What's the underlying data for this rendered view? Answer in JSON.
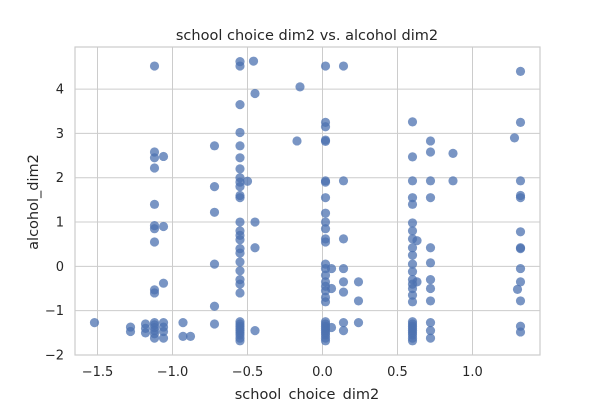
{
  "chart_data": {
    "type": "scatter",
    "title": "school choice dim2 vs. alcohol dim2",
    "xlabel": "school_choice_dim2",
    "ylabel": "alcohol_dim2",
    "xlim": [
      -1.65,
      1.45
    ],
    "ylim": [
      -2.0,
      4.95
    ],
    "xticks": [
      -1.5,
      -1.0,
      -0.5,
      0.0,
      0.5,
      1.0
    ],
    "xtick_labels": [
      "−1.5",
      "−1.0",
      "−0.5",
      "0.0",
      "0.5",
      "1.0"
    ],
    "yticks": [
      -2,
      -1,
      0,
      1,
      2,
      3,
      4
    ],
    "ytick_labels": [
      "−2",
      "−1",
      "0",
      "1",
      "2",
      "3",
      "4"
    ],
    "grid": true,
    "marker_color": "#4c72b0",
    "series": [
      {
        "points": [
          [
            -1.52,
            -1.27
          ],
          [
            -1.28,
            -1.37
          ],
          [
            -1.28,
            -1.47
          ],
          [
            -1.18,
            -1.3
          ],
          [
            -1.18,
            -1.4
          ],
          [
            -1.18,
            -1.5
          ],
          [
            -1.12,
            4.52
          ],
          [
            -1.12,
            2.58
          ],
          [
            -1.12,
            2.45
          ],
          [
            -1.12,
            2.22
          ],
          [
            -1.12,
            1.4
          ],
          [
            -1.12,
            0.92
          ],
          [
            -1.12,
            0.85
          ],
          [
            -1.12,
            0.55
          ],
          [
            -1.12,
            -0.53
          ],
          [
            -1.12,
            -0.6
          ],
          [
            -1.12,
            -1.27
          ],
          [
            -1.12,
            -1.32
          ],
          [
            -1.12,
            -1.38
          ],
          [
            -1.12,
            -1.45
          ],
          [
            -1.12,
            -1.52
          ],
          [
            -1.12,
            -1.62
          ],
          [
            -1.06,
            2.48
          ],
          [
            -1.06,
            0.9
          ],
          [
            -1.06,
            -0.38
          ],
          [
            -1.06,
            -1.27
          ],
          [
            -1.06,
            -1.37
          ],
          [
            -1.06,
            -1.47
          ],
          [
            -1.06,
            -1.62
          ],
          [
            -0.93,
            -1.27
          ],
          [
            -0.93,
            -1.58
          ],
          [
            -0.88,
            -1.58
          ],
          [
            -0.72,
            2.72
          ],
          [
            -0.72,
            1.8
          ],
          [
            -0.72,
            1.22
          ],
          [
            -0.72,
            0.05
          ],
          [
            -0.72,
            -0.9
          ],
          [
            -0.72,
            -1.3
          ],
          [
            -0.55,
            4.62
          ],
          [
            -0.55,
            4.52
          ],
          [
            -0.55,
            3.65
          ],
          [
            -0.55,
            3.02
          ],
          [
            -0.55,
            2.72
          ],
          [
            -0.55,
            2.45
          ],
          [
            -0.55,
            2.2
          ],
          [
            -0.55,
            2.0
          ],
          [
            -0.55,
            1.9
          ],
          [
            -0.55,
            1.8
          ],
          [
            -0.55,
            1.6
          ],
          [
            -0.55,
            1.55
          ],
          [
            -0.55,
            1.0
          ],
          [
            -0.55,
            0.8
          ],
          [
            -0.55,
            0.7
          ],
          [
            -0.55,
            0.6
          ],
          [
            -0.55,
            0.4
          ],
          [
            -0.55,
            0.3
          ],
          [
            -0.55,
            0.1
          ],
          [
            -0.55,
            -0.1
          ],
          [
            -0.55,
            -0.3
          ],
          [
            -0.55,
            -0.4
          ],
          [
            -0.55,
            -0.6
          ],
          [
            -0.55,
            -1.25
          ],
          [
            -0.55,
            -1.3
          ],
          [
            -0.55,
            -1.35
          ],
          [
            -0.55,
            -1.4
          ],
          [
            -0.55,
            -1.45
          ],
          [
            -0.55,
            -1.5
          ],
          [
            -0.55,
            -1.55
          ],
          [
            -0.55,
            -1.62
          ],
          [
            -0.55,
            -1.68
          ],
          [
            -0.5,
            1.92
          ],
          [
            -0.46,
            4.63
          ],
          [
            -0.45,
            3.9
          ],
          [
            -0.45,
            1.0
          ],
          [
            -0.45,
            0.42
          ],
          [
            -0.45,
            -1.45
          ],
          [
            -0.15,
            4.05
          ],
          [
            -0.17,
            2.83
          ],
          [
            0.02,
            4.52
          ],
          [
            0.02,
            3.25
          ],
          [
            0.02,
            3.15
          ],
          [
            0.02,
            2.85
          ],
          [
            0.02,
            2.82
          ],
          [
            0.02,
            1.93
          ],
          [
            0.02,
            1.9
          ],
          [
            0.02,
            1.55
          ],
          [
            0.02,
            1.2
          ],
          [
            0.02,
            1.0
          ],
          [
            0.02,
            0.85
          ],
          [
            0.02,
            0.62
          ],
          [
            0.02,
            0.55
          ],
          [
            0.02,
            0.05
          ],
          [
            0.02,
            -0.05
          ],
          [
            0.02,
            -0.2
          ],
          [
            0.02,
            -0.35
          ],
          [
            0.02,
            -0.45
          ],
          [
            0.02,
            -0.55
          ],
          [
            0.02,
            -0.7
          ],
          [
            0.02,
            -0.8
          ],
          [
            0.02,
            -1.25
          ],
          [
            0.02,
            -1.3
          ],
          [
            0.02,
            -1.35
          ],
          [
            0.02,
            -1.4
          ],
          [
            0.02,
            -1.45
          ],
          [
            0.02,
            -1.5
          ],
          [
            0.02,
            -1.55
          ],
          [
            0.02,
            -1.62
          ],
          [
            0.02,
            -1.68
          ],
          [
            0.06,
            -0.05
          ],
          [
            0.06,
            -0.5
          ],
          [
            0.06,
            -1.38
          ],
          [
            0.14,
            4.52
          ],
          [
            0.14,
            1.93
          ],
          [
            0.14,
            0.62
          ],
          [
            0.14,
            -0.05
          ],
          [
            0.14,
            -0.35
          ],
          [
            0.14,
            -0.58
          ],
          [
            0.14,
            -1.27
          ],
          [
            0.14,
            -1.45
          ],
          [
            0.24,
            -0.35
          ],
          [
            0.24,
            -0.78
          ],
          [
            0.24,
            -1.27
          ],
          [
            0.6,
            3.26
          ],
          [
            0.6,
            2.47
          ],
          [
            0.6,
            1.93
          ],
          [
            0.6,
            1.55
          ],
          [
            0.6,
            1.4
          ],
          [
            0.6,
            0.98
          ],
          [
            0.6,
            0.8
          ],
          [
            0.6,
            0.62
          ],
          [
            0.6,
            0.42
          ],
          [
            0.6,
            0.25
          ],
          [
            0.6,
            0.05
          ],
          [
            0.6,
            -0.12
          ],
          [
            0.6,
            -0.3
          ],
          [
            0.6,
            -0.4
          ],
          [
            0.6,
            -0.5
          ],
          [
            0.6,
            -0.65
          ],
          [
            0.6,
            -0.8
          ],
          [
            0.6,
            -1.25
          ],
          [
            0.6,
            -1.3
          ],
          [
            0.6,
            -1.35
          ],
          [
            0.6,
            -1.4
          ],
          [
            0.6,
            -1.45
          ],
          [
            0.6,
            -1.5
          ],
          [
            0.6,
            -1.55
          ],
          [
            0.6,
            -1.62
          ],
          [
            0.6,
            -1.68
          ],
          [
            0.63,
            0.58
          ],
          [
            0.63,
            -0.35
          ],
          [
            0.72,
            2.83
          ],
          [
            0.72,
            2.58
          ],
          [
            0.72,
            1.93
          ],
          [
            0.72,
            1.55
          ],
          [
            0.72,
            0.42
          ],
          [
            0.72,
            0.08
          ],
          [
            0.72,
            -0.3
          ],
          [
            0.72,
            -0.5
          ],
          [
            0.72,
            -0.78
          ],
          [
            0.72,
            -1.27
          ],
          [
            0.72,
            -1.45
          ],
          [
            0.72,
            -1.62
          ],
          [
            0.87,
            2.55
          ],
          [
            0.87,
            1.93
          ],
          [
            1.28,
            2.9
          ],
          [
            1.3,
            -0.52
          ],
          [
            1.32,
            4.4
          ],
          [
            1.32,
            3.25
          ],
          [
            1.32,
            1.93
          ],
          [
            1.32,
            1.6
          ],
          [
            1.32,
            1.55
          ],
          [
            1.32,
            0.78
          ],
          [
            1.32,
            0.42
          ],
          [
            1.32,
            0.4
          ],
          [
            1.32,
            -0.05
          ],
          [
            1.32,
            -0.35
          ],
          [
            1.32,
            -0.78
          ],
          [
            1.32,
            -1.35
          ],
          [
            1.32,
            -1.48
          ]
        ]
      }
    ]
  }
}
